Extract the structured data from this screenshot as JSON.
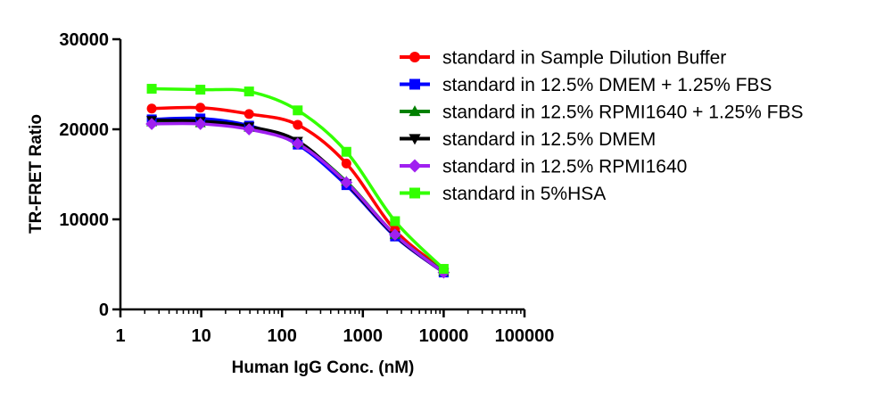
{
  "chart_data": {
    "type": "line",
    "title": "",
    "xlabel": "Human IgG Conc. (nM)",
    "ylabel": "TR-FRET Ratio",
    "xscale": "log",
    "xlim": [
      1,
      100000
    ],
    "ylim": [
      0,
      30000
    ],
    "xticks": [
      1,
      10,
      100,
      1000,
      10000,
      100000
    ],
    "xtick_labels": [
      "1",
      "10",
      "100",
      "1000",
      "10000",
      "100000"
    ],
    "yticks": [
      0,
      10000,
      20000,
      30000
    ],
    "ytick_labels": [
      "0",
      "10000",
      "20000",
      "30000"
    ],
    "grid": false,
    "legend_position": "top-right",
    "x": [
      2.44,
      9.77,
      39.06,
      156.25,
      625,
      2500,
      10000
    ],
    "series": [
      {
        "name": "standard in Sample Dilution Buffer",
        "color": "#ff0000",
        "marker": "circle",
        "values": [
          22300,
          22400,
          21700,
          20500,
          16200,
          8800,
          4400
        ]
      },
      {
        "name": "standard in 12.5% DMEM + 1.25% FBS",
        "color": "#0000ff",
        "marker": "square",
        "values": [
          21100,
          21200,
          20400,
          18300,
          13800,
          8100,
          4100
        ]
      },
      {
        "name": "standard in 12.5% RPMI1640 + 1.25% FBS",
        "color": "#008000",
        "marker": "triangle-up",
        "values": [
          20800,
          20700,
          20200,
          18500,
          14200,
          8300,
          4200
        ]
      },
      {
        "name": "standard in 12.5% DMEM",
        "color": "#000000",
        "marker": "triangle-down",
        "values": [
          21000,
          20900,
          20300,
          18700,
          14000,
          8200,
          4100
        ]
      },
      {
        "name": "standard in 12.5% RPMI1640",
        "color": "#a020f0",
        "marker": "diamond",
        "values": [
          20600,
          20600,
          20000,
          18400,
          14100,
          8300,
          4100
        ]
      },
      {
        "name": "standard in 5%HSA",
        "color": "#33ff00",
        "marker": "square",
        "values": [
          24500,
          24400,
          24200,
          22100,
          17500,
          9800,
          4500
        ]
      }
    ]
  }
}
